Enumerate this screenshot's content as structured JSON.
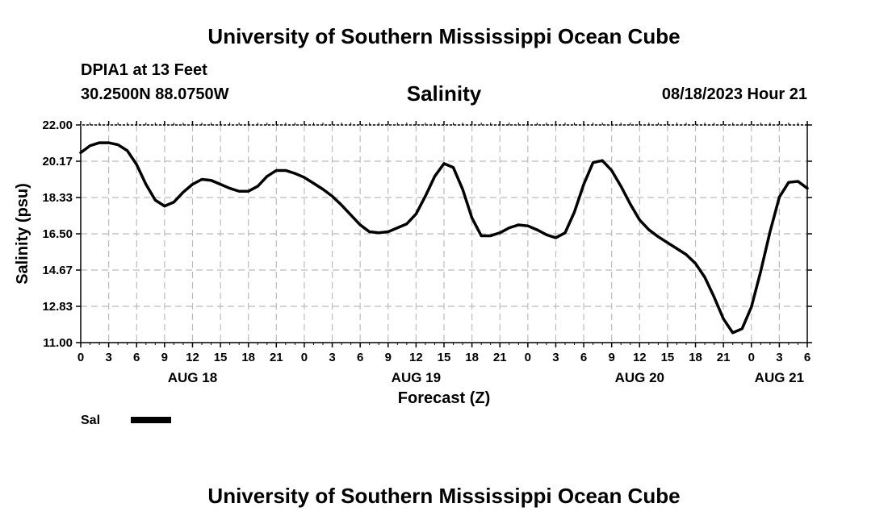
{
  "header": {
    "title": "University of Southern Mississippi Ocean Cube",
    "station": "DPIA1 at 13 Feet",
    "coords": "30.2500N  88.0750W",
    "timestamp": "08/18/2023 Hour 21"
  },
  "footer": {
    "title": "University of Southern Mississippi Ocean Cube"
  },
  "chart_data": {
    "type": "line",
    "title": "Salinity",
    "xlabel": "Forecast (Z)",
    "ylabel": "Salinity (psu)",
    "xlim": [
      0,
      78
    ],
    "ylim": [
      11.0,
      22.0
    ],
    "x_unit": "hours from AUG 18 00Z",
    "y_ticks": [
      "22.00",
      "20.17",
      "18.33",
      "16.50",
      "14.67",
      "12.83",
      "11.00"
    ],
    "x_tick_labels": [
      "0",
      "3",
      "6",
      "9",
      "12",
      "15",
      "18",
      "21",
      "0",
      "3",
      "6",
      "9",
      "12",
      "15",
      "18",
      "21",
      "0",
      "3",
      "6",
      "9",
      "12",
      "15",
      "18",
      "21",
      "0",
      "3",
      "6"
    ],
    "date_labels": [
      {
        "label": "AUG 18",
        "hour": 12
      },
      {
        "label": "AUG 19",
        "hour": 36
      },
      {
        "label": "AUG 20",
        "hour": 60
      },
      {
        "label": "AUG 21",
        "hour": 75
      }
    ],
    "grid": true,
    "legend": [
      {
        "name": "Sal",
        "color": "#000000"
      }
    ],
    "series": [
      {
        "name": "Sal",
        "color": "#000000",
        "x": [
          0,
          1,
          2,
          3,
          4,
          5,
          6,
          7,
          8,
          9,
          10,
          11,
          12,
          13,
          14,
          15,
          16,
          17,
          18,
          19,
          20,
          21,
          22,
          23,
          24,
          25,
          26,
          27,
          28,
          29,
          30,
          31,
          32,
          33,
          34,
          35,
          36,
          37,
          38,
          39,
          40,
          41,
          42,
          43,
          44,
          45,
          46,
          47,
          48,
          49,
          50,
          51,
          52,
          53,
          54,
          55,
          56,
          57,
          58,
          59,
          60,
          61,
          62,
          63,
          64,
          65,
          66,
          67,
          68,
          69,
          70,
          71,
          72,
          73,
          74,
          75,
          76,
          77,
          78
        ],
        "values": [
          20.6,
          20.95,
          21.1,
          21.1,
          21.0,
          20.7,
          20.0,
          19.0,
          18.2,
          17.9,
          18.1,
          18.6,
          19.0,
          19.25,
          19.2,
          19.0,
          18.8,
          18.65,
          18.65,
          18.9,
          19.4,
          19.7,
          19.7,
          19.55,
          19.35,
          19.05,
          18.75,
          18.4,
          17.95,
          17.45,
          16.95,
          16.6,
          16.55,
          16.6,
          16.8,
          17.0,
          17.5,
          18.4,
          19.4,
          20.05,
          19.85,
          18.75,
          17.3,
          16.4,
          16.4,
          16.55,
          16.8,
          16.95,
          16.9,
          16.7,
          16.45,
          16.3,
          16.55,
          17.6,
          19.0,
          20.1,
          20.2,
          19.7,
          18.9,
          18.0,
          17.2,
          16.7,
          16.35,
          16.05,
          15.75,
          15.45,
          15.0,
          14.3,
          13.3,
          12.2,
          11.5,
          11.7,
          12.8,
          14.6,
          16.6,
          18.35,
          19.1,
          19.15,
          18.8
        ]
      }
    ]
  }
}
